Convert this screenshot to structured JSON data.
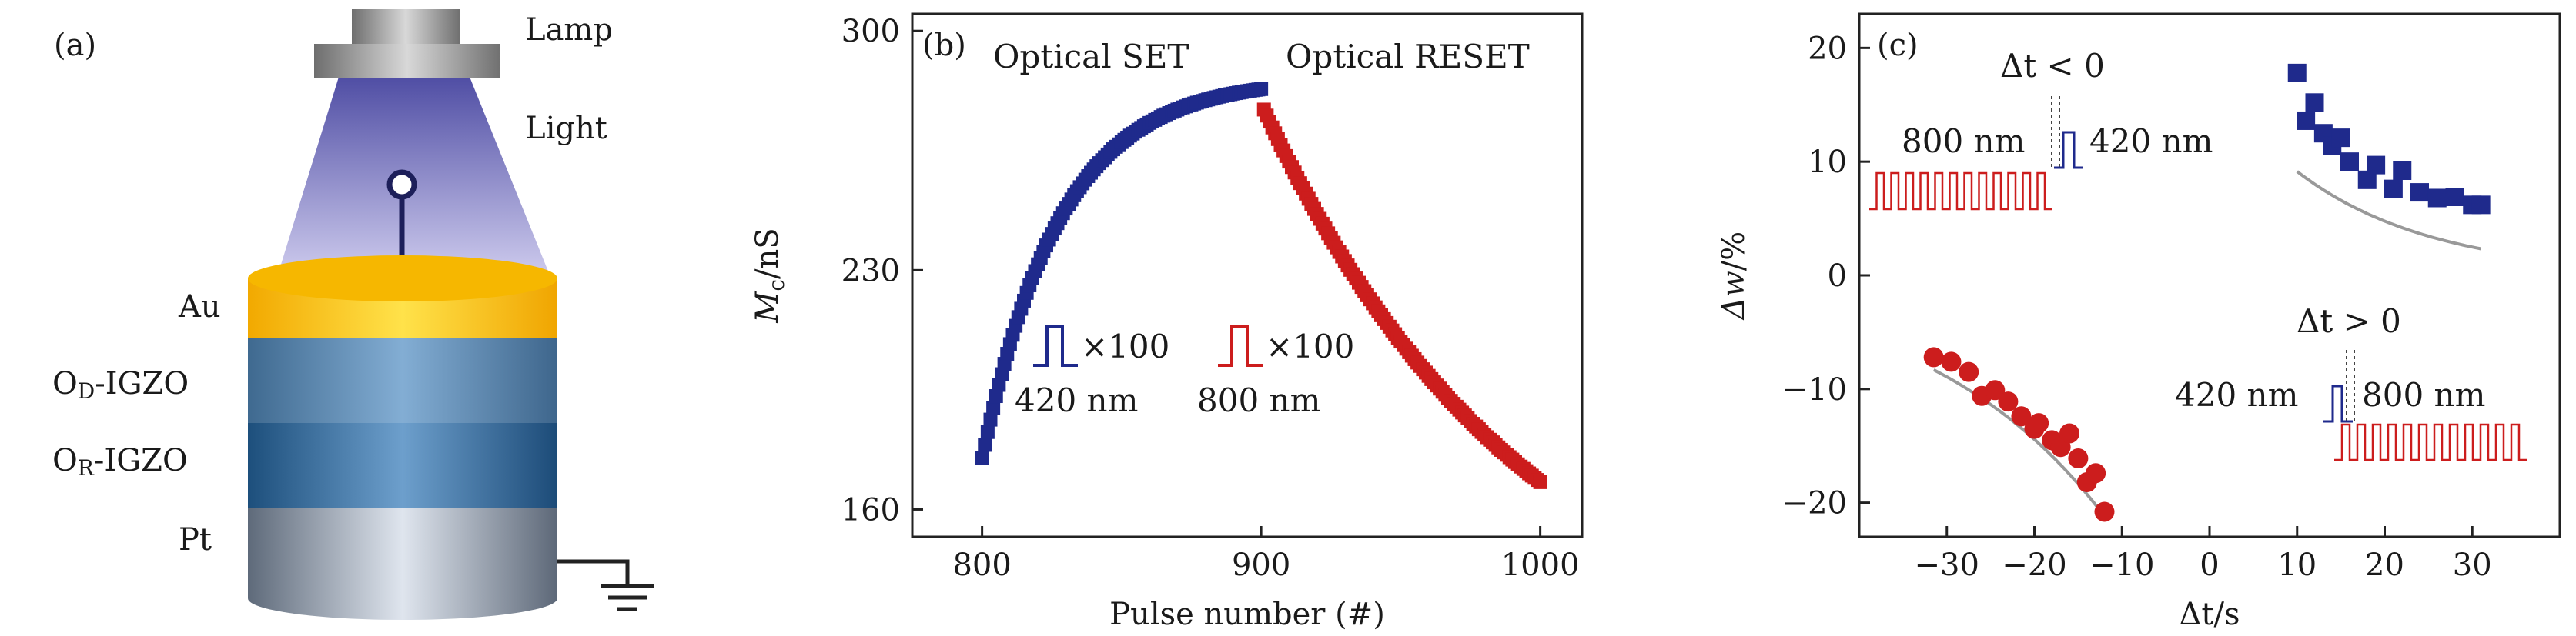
{
  "panel_a": {
    "label": "(a)",
    "lamp_label": "Lamp",
    "light_label": "Light",
    "layers": [
      "Au",
      "O",
      "-IGZO",
      "O",
      "-IGZO",
      "Pt"
    ],
    "layer_subscripts": [
      "D",
      "R"
    ]
  },
  "chart_data": [
    {
      "type": "scatter",
      "panel_label": "(b)",
      "title": "",
      "xlabel": "Pulse number (#)",
      "ylabel_main": "M",
      "ylabel_sub": "c",
      "ylabel_unit": "/nS",
      "xlim": [
        775,
        1015
      ],
      "ylim": [
        152,
        305
      ],
      "xticks": [
        800,
        900,
        1000
      ],
      "yticks": [
        160,
        230,
        300
      ],
      "xtick_labels": [
        "800",
        "900",
        "1000"
      ],
      "ytick_labels": [
        "160",
        "230",
        "300"
      ],
      "annotations": {
        "set": "Optical SET",
        "reset": "Optical RESET",
        "set_pulse_count": "×100",
        "set_wavelength": "420 nm",
        "reset_pulse_count": "×100",
        "reset_wavelength": "800 nm"
      },
      "series": [
        {
          "name": "Optical SET",
          "color": "#1f2a8c",
          "marker": "square",
          "x_start": 800,
          "x_end": 900,
          "step": 1,
          "y_start": 175,
          "y_end": 283,
          "tau": 28
        },
        {
          "name": "Optical RESET",
          "color": "#cc1d1d",
          "marker": "square",
          "x_start": 901,
          "x_end": 1000,
          "step": 1,
          "y_start": 277,
          "y_end": 168,
          "tau": 95
        }
      ]
    },
    {
      "type": "scatter",
      "panel_label": "(c)",
      "title": "",
      "xlabel_main": "Δt",
      "xlabel_unit": "/s",
      "ylabel_main": "Δw",
      "ylabel_unit": "/%",
      "xlim": [
        -40,
        40
      ],
      "ylim": [
        -23,
        23
      ],
      "xticks": [
        -30,
        -20,
        -10,
        0,
        10,
        20,
        30
      ],
      "yticks": [
        -20,
        -10,
        0,
        10,
        20
      ],
      "xtick_labels": [
        "−30",
        "−20",
        "−10",
        "0",
        "10",
        "20",
        "30"
      ],
      "ytick_labels": [
        "−20",
        "−10",
        "0",
        "10",
        "20"
      ],
      "annotations": {
        "neg_condition": "Δt < 0",
        "neg_left_wavelength": "800 nm",
        "neg_right_wavelength": "420 nm",
        "pos_condition": "Δt > 0",
        "pos_left_wavelength": "420 nm",
        "pos_right_wavelength": "800 nm"
      },
      "series": [
        {
          "name": "Δt>0",
          "color": "#1f2a8c",
          "marker": "square",
          "x": [
            10,
            11,
            12,
            13,
            14,
            15,
            16,
            18,
            19,
            21,
            22,
            24,
            26,
            28,
            30,
            31
          ],
          "y": [
            17.8,
            13.6,
            15.2,
            12.5,
            11.4,
            12.1,
            10.0,
            8.4,
            9.7,
            7.6,
            9.2,
            7.3,
            6.8,
            6.9,
            6.2,
            6.2
          ],
          "fit": {
            "a": 17.5,
            "b": -0.065
          }
        },
        {
          "name": "Δt<0",
          "color": "#cc1d1d",
          "marker": "circle",
          "x": [
            -31.5,
            -29.5,
            -27.5,
            -26,
            -24.5,
            -23,
            -21.5,
            -20,
            -19.5,
            -18,
            -17,
            -16,
            -15,
            -14,
            -13,
            -12
          ],
          "y": [
            -7.2,
            -7.6,
            -8.5,
            -10.6,
            -10.1,
            -11.1,
            -12.4,
            -13.5,
            -13.0,
            -14.5,
            -15.1,
            -13.9,
            -16.1,
            -18.2,
            -17.4,
            -20.8
          ],
          "fit": {
            "a": -37.7,
            "b": 0.048
          }
        }
      ]
    }
  ]
}
